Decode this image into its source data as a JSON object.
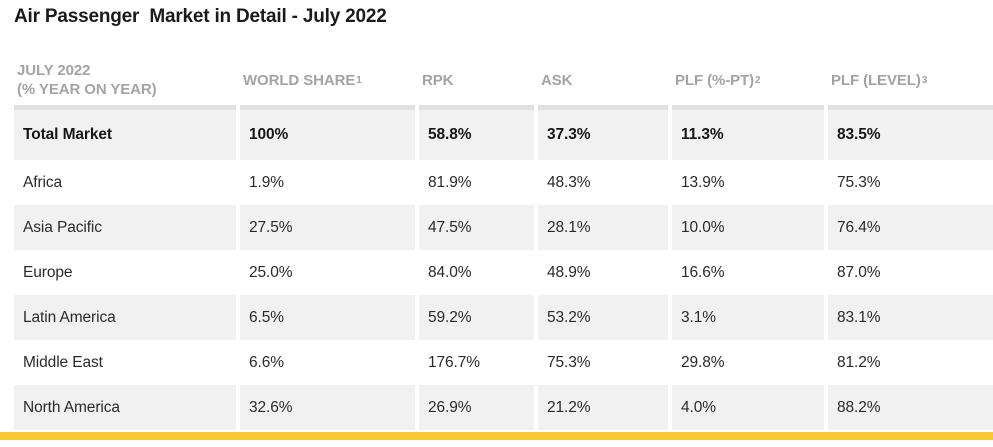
{
  "title": "Air Passenger  Market in Detail - July 2022",
  "header": {
    "region_line1": "JULY 2022",
    "region_line2": "(% YEAR ON YEAR)",
    "columns": [
      {
        "label": "WORLD SHARE",
        "sup": "1"
      },
      {
        "label": "RPK",
        "sup": ""
      },
      {
        "label": "ASK",
        "sup": ""
      },
      {
        "label": "PLF (%-PT)",
        "sup": "2"
      },
      {
        "label": "PLF (LEVEL)",
        "sup": "3"
      }
    ]
  },
  "chart_data": {
    "type": "table",
    "title": "Air Passenger  Market in Detail - July 2022",
    "columns": [
      "JULY 2022 (% YEAR ON YEAR)",
      "WORLD SHARE¹",
      "RPK",
      "ASK",
      "PLF (%-PT)²",
      "PLF (LEVEL)³"
    ],
    "rows": [
      [
        "Total Market",
        "100%",
        "58.8%",
        "37.3%",
        "11.3%",
        "83.5%"
      ],
      [
        "Africa",
        "1.9%",
        "81.9%",
        "48.3%",
        "13.9%",
        "75.3%"
      ],
      [
        "Asia Pacific",
        "27.5%",
        "47.5%",
        "28.1%",
        "10.0%",
        "76.4%"
      ],
      [
        "Europe",
        "25.0%",
        "84.0%",
        "48.9%",
        "16.6%",
        "87.0%"
      ],
      [
        "Latin America",
        "6.5%",
        "59.2%",
        "53.2%",
        "3.1%",
        "83.1%"
      ],
      [
        "Middle East",
        "6.6%",
        "176.7%",
        "75.3%",
        "29.8%",
        "81.2%"
      ],
      [
        "North America",
        "32.6%",
        "26.9%",
        "21.2%",
        "4.0%",
        "88.2%"
      ]
    ]
  },
  "colors": {
    "accent_yellow": "#F8C837",
    "row_shade_bg": "#F1F1F1",
    "header_text": "#A3A3A3",
    "first_row_top_border": "#E1E1E1"
  }
}
